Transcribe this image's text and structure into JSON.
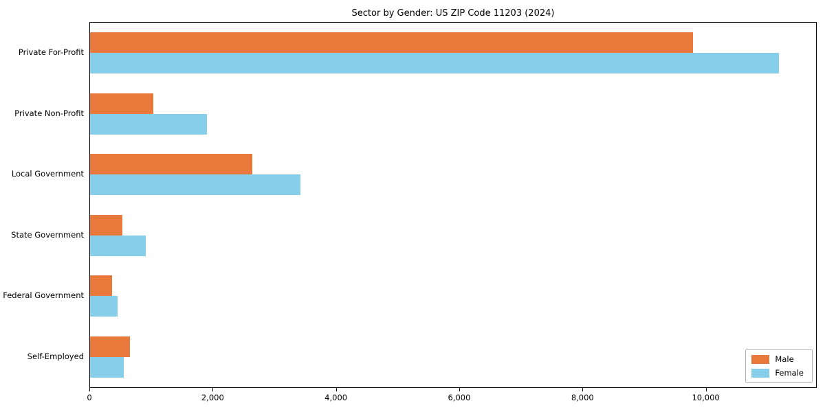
{
  "title": "Sector by Gender: US ZIP Code 11203 (2024)",
  "chart_data": {
    "type": "bar",
    "orientation": "horizontal",
    "title": "Sector by Gender: US ZIP Code 11203 (2024)",
    "categories": [
      "Private For-Profit",
      "Private Non-Profit",
      "Local Government",
      "State Government",
      "Federal Government",
      "Self-Employed"
    ],
    "series": [
      {
        "name": "Male",
        "color": "#e8793b",
        "values": [
          9800,
          1030,
          2640,
          520,
          360,
          650
        ]
      },
      {
        "name": "Female",
        "color": "#87ceeb",
        "values": [
          11200,
          1900,
          3420,
          900,
          450,
          550
        ]
      }
    ],
    "xlabel": "",
    "ylabel": "",
    "xlim": [
      0,
      11800
    ],
    "x_ticks": [
      0,
      2000,
      4000,
      6000,
      8000,
      10000
    ],
    "x_tick_labels": [
      "0",
      "2,000",
      "4,000",
      "6,000",
      "8,000",
      "10,000"
    ],
    "grid": false,
    "legend_position": "lower right"
  }
}
